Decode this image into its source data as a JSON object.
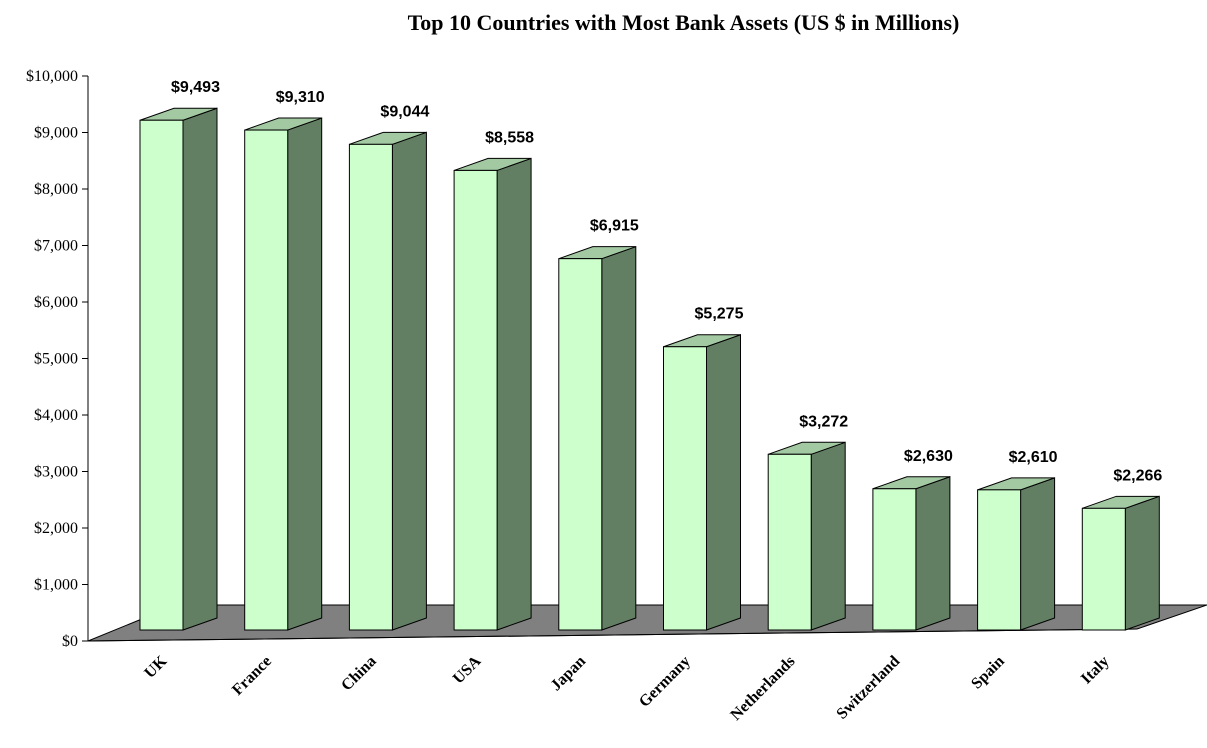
{
  "chart_data": {
    "type": "bar",
    "title": "Top 10 Countries with Most Bank Assets (US $ in Millions)",
    "categories": [
      "UK",
      "France",
      "China",
      "USA",
      "Japan",
      "Germany",
      "Netherlands",
      "Switzerland",
      "Spain",
      "Italy"
    ],
    "values": [
      9493,
      9310,
      9044,
      8558,
      6915,
      5275,
      3272,
      2630,
      2610,
      2266
    ],
    "data_labels": [
      "$9,493",
      "$9,310",
      "$9,044",
      "$8,558",
      "$6,915",
      "$5,275",
      "$3,272",
      "$2,630",
      "$2,610",
      "$2,266"
    ],
    "ylim": [
      0,
      10000
    ],
    "yticks": [
      0,
      1000,
      2000,
      3000,
      4000,
      5000,
      6000,
      7000,
      8000,
      9000,
      10000
    ],
    "ytick_labels": [
      "$0",
      "$1,000",
      "$2,000",
      "$3,000",
      "$4,000",
      "$5,000",
      "$6,000",
      "$7,000",
      "$8,000",
      "$9,000",
      "$10,000"
    ],
    "xlabel": "",
    "ylabel": "",
    "grid": false,
    "legend": "none",
    "three_d": true,
    "colors": {
      "bar_front": "#CCFFCC",
      "bar_side": "#637F63",
      "bar_top": "#A3C9A3",
      "floor": "#808080",
      "outline": "#000000"
    }
  }
}
